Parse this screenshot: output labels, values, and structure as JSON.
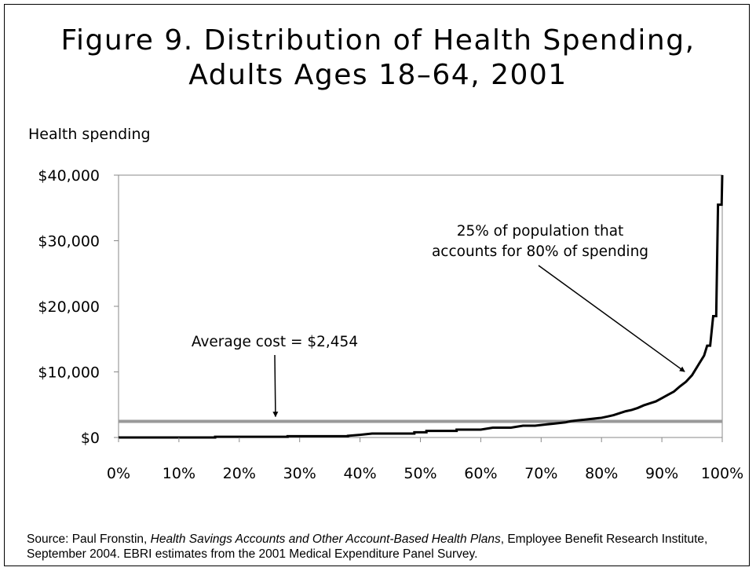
{
  "title_line1": "Figure 9. Distribution of Health Spending,",
  "title_line2": "Adults Ages 18–64, 2001",
  "ylabel": "Health spending",
  "source": {
    "prefix": "Source: Paul Fronstin, ",
    "italic": "Health Savings Accounts and Other Account-Based Health Plans",
    "suffix": ", Employee Benefit Research Institute, September 2004. EBRI estimates from the 2001 Medical Expenditure Panel Survey."
  },
  "chart_data": {
    "type": "line",
    "title": "Figure 9. Distribution of Health Spending, Adults Ages 18–64, 2001",
    "ylabel": "Health spending",
    "xlabel": "",
    "xlim": [
      0,
      100
    ],
    "ylim": [
      0,
      40000
    ],
    "x_ticks": [
      "0%",
      "10%",
      "20%",
      "30%",
      "40%",
      "50%",
      "60%",
      "70%",
      "80%",
      "90%",
      "100%"
    ],
    "y_ticks": [
      "$0",
      "$10,000",
      "$20,000",
      "$30,000",
      "$40,000"
    ],
    "y_tick_values": [
      0,
      10000,
      20000,
      30000,
      40000
    ],
    "grid": false,
    "series": [
      {
        "color": "#000000",
        "points": [
          [
            0,
            0
          ],
          [
            16,
            0
          ],
          [
            16,
            100
          ],
          [
            28,
            100
          ],
          [
            28,
            200
          ],
          [
            38,
            200
          ],
          [
            38,
            250
          ],
          [
            40,
            400
          ],
          [
            42,
            600
          ],
          [
            49,
            600
          ],
          [
            49,
            800
          ],
          [
            51,
            800
          ],
          [
            51,
            1000
          ],
          [
            56,
            1000
          ],
          [
            56,
            1200
          ],
          [
            60,
            1200
          ],
          [
            62,
            1500
          ],
          [
            65,
            1500
          ],
          [
            67,
            1800
          ],
          [
            69,
            1800
          ],
          [
            71,
            2000
          ],
          [
            72,
            2100
          ],
          [
            74,
            2300
          ],
          [
            75,
            2500
          ],
          [
            76,
            2600
          ],
          [
            77,
            2700
          ],
          [
            78,
            2800
          ],
          [
            79,
            2900
          ],
          [
            80,
            3000
          ],
          [
            81,
            3200
          ],
          [
            82,
            3400
          ],
          [
            83,
            3700
          ],
          [
            84,
            4000
          ],
          [
            85,
            4200
          ],
          [
            86,
            4500
          ],
          [
            87,
            4900
          ],
          [
            88,
            5200
          ],
          [
            89,
            5500
          ],
          [
            90,
            6000
          ],
          [
            91,
            6500
          ],
          [
            92,
            7000
          ],
          [
            93,
            7800
          ],
          [
            94,
            8500
          ],
          [
            95,
            9500
          ],
          [
            96,
            11000
          ],
          [
            97,
            12500
          ],
          [
            97.5,
            14000
          ],
          [
            98,
            14000
          ],
          [
            98.5,
            18500
          ],
          [
            99,
            18500
          ],
          [
            99.3,
            35500
          ],
          [
            99.9,
            35500
          ],
          [
            100,
            40000
          ]
        ]
      },
      {
        "color": "#999999",
        "points": [
          [
            0,
            2454
          ],
          [
            100,
            2454
          ]
        ]
      }
    ],
    "annotations": [
      {
        "text": "Average cost = $2,454",
        "arrow_x": 26,
        "arrow_y": 2700
      },
      {
        "text": "25% of population that",
        "text2": "accounts for 80% of spending",
        "arrow_x": 94.3,
        "arrow_y": 9800
      }
    ]
  }
}
